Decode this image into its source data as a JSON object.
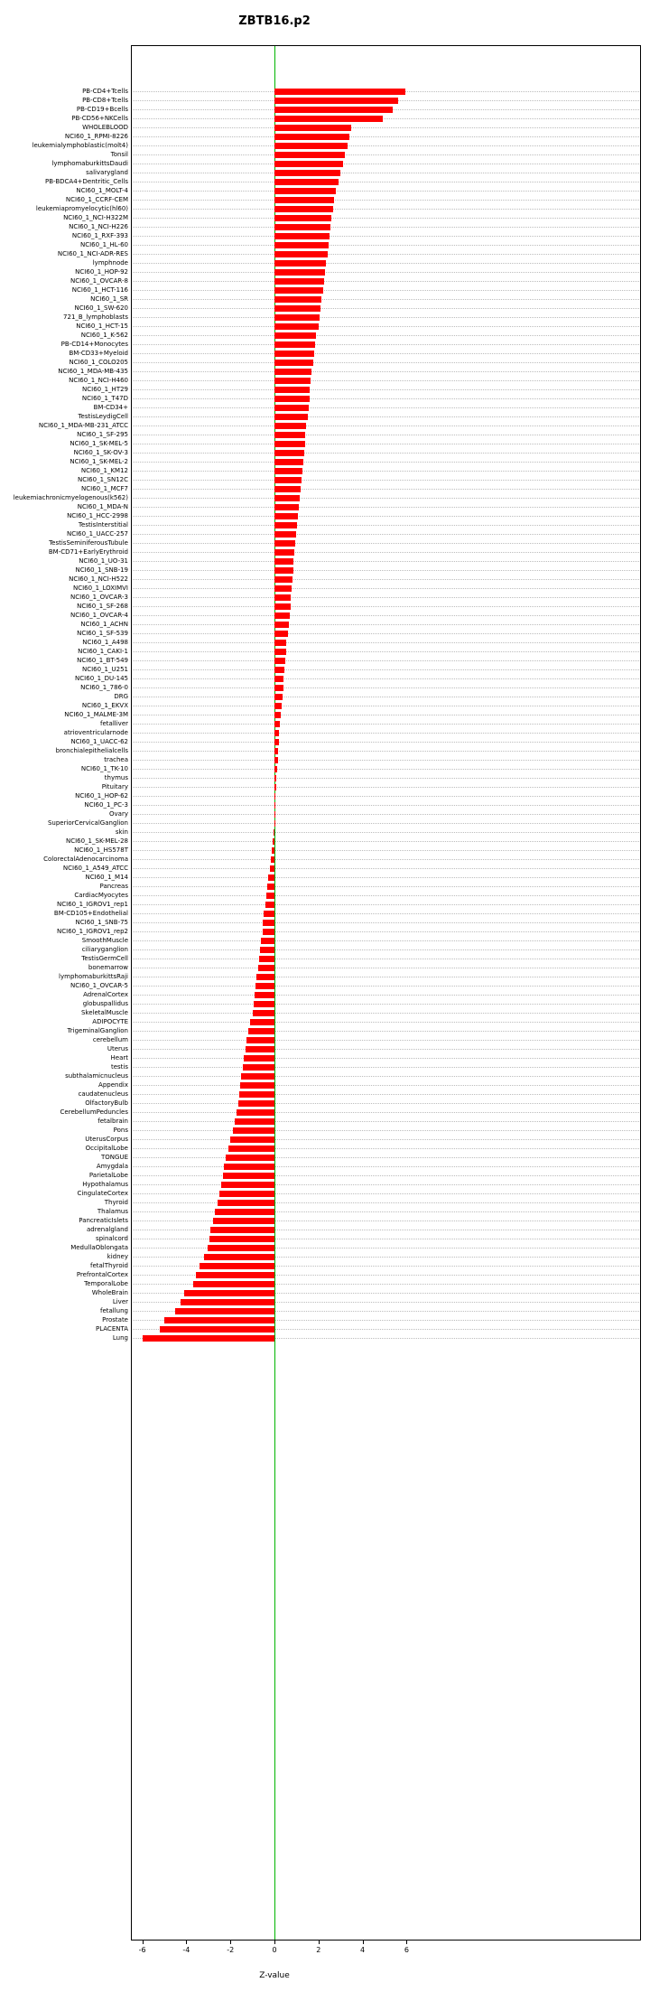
{
  "chart_data": {
    "type": "bar",
    "orientation": "horizontal",
    "title": "ZBTB16.p2",
    "xlabel": "Z-value",
    "xlim": [
      -6.5,
      6.5
    ],
    "x_ticks": [
      -6,
      -4,
      -2,
      0,
      2,
      4,
      6
    ],
    "grid": "dotted-horizontal-per-category",
    "legend": "none",
    "bar_color": "#ff0000",
    "zero_line_color": "#00b400",
    "categories": [
      "PB-CD4+Tcells",
      "PB-CD8+Tcells",
      "PB-CD19+Bcells",
      "PB-CD56+NKCells",
      "WHOLEBLOOD",
      "NCI60_1_RPMI-8226",
      "leukemialymphoblastic(molt4)",
      "Tonsil",
      "lymphomaburkittsDaudi",
      "salivarygland",
      "PB-BDCA4+Dentritic_Cells",
      "NCI60_1_MOLT-4",
      "NCI60_1_CCRF-CEM",
      "leukemiapromyelocytic(hl60)",
      "NCI60_1_NCI-H322M",
      "NCI60_1_NCI-H226",
      "NCI60_1_RXF-393",
      "NCI60_1_HL-60",
      "NCI60_1_NCI-ADR-RES",
      "lymphnode",
      "NCI60_1_HOP-92",
      "NCI60_1_OVCAR-8",
      "NCI60_1_HCT-116",
      "NCI60_1_SR",
      "NCI60_1_SW-620",
      "721_B_lymphoblasts",
      "NCI60_1_HCT-15",
      "NCI60_1_K-562",
      "PB-CD14+Monocytes",
      "BM-CD33+Myeloid",
      "NCI60_1_COLO205",
      "NCI60_1_MDA-MB-435",
      "NCI60_1_NCI-H460",
      "NCI60_1_HT29",
      "NCI60_1_T47D",
      "BM-CD34+",
      "TestisLeydigCell",
      "NCI60_1_MDA-MB-231_ATCC",
      "NCI60_1_SF-295",
      "NCI60_1_SK-MEL-5",
      "NCI60_1_SK-OV-3",
      "NCI60_1_SK-MEL-2",
      "NCI60_1_KM12",
      "NCI60_1_SN12C",
      "NCI60_1_MCF7",
      "leukemiachronicmyelogenous(k562)",
      "NCI60_1_MDA-N",
      "NCI60_1_HCC-2998",
      "TestisInterstitial",
      "NCI60_1_UACC-257",
      "TestisSeminiferousTubule",
      "BM-CD71+EarlyErythroid",
      "NCI60_1_UO-31",
      "NCI60_1_SNB-19",
      "NCI60_1_NCI-H522",
      "NCI60_1_LOXIMVI",
      "NCI60_1_OVCAR-3",
      "NCI60_1_SF-268",
      "NCI60_1_OVCAR-4",
      "NCI60_1_ACHN",
      "NCI60_1_SF-539",
      "NCI60_1_A498",
      "NCI60_1_CAKI-1",
      "NCI60_1_BT-549",
      "NCI60_1_U251",
      "NCI60_1_DU-145",
      "NCI60_1_786-0",
      "DRG",
      "NCI60_1_EKVX",
      "NCI60_1_MALME-3M",
      "fetalliver",
      "atrioventricularnode",
      "NCI60_1_UACC-62",
      "bronchialepithelialcells",
      "trachea",
      "NCI60_1_TK-10",
      "thymus",
      "Pituitary",
      "NCI60_1_HOP-62",
      "NCI60_1_PC-3",
      "Ovary",
      "SuperiorCervicalGanglion",
      "skin",
      "NCI60_1_SK-MEL-28",
      "NCI60_1_HS578T",
      "ColorectalAdenocarcinoma",
      "NCI60_1_A549_ATCC",
      "NCI60_1_M14",
      "Pancreas",
      "CardiacMyocytes",
      "NCI60_1_IGROV1_rep1",
      "BM-CD105+Endothelial",
      "NCI60_1_SNB-75",
      "NCI60_1_IGROV1_rep2",
      "SmoothMuscle",
      "ciliaryganglion",
      "TestisGermCell",
      "bonemarrow",
      "lymphomaburkittsRaji",
      "NCI60_1_OVCAR-5",
      "AdrenalCortex",
      "globuspallidus",
      "SkeletalMuscle",
      "ADIPOCYTE",
      "TrigeminalGanglion",
      "cerebellum",
      "Uterus",
      "Heart",
      "testis",
      "subthalamicnucleus",
      "Appendix",
      "caudatenucleus",
      "OlfactoryBulb",
      "CerebellumPeduncles",
      "fetalbrain",
      "Pons",
      "UterusCorpus",
      "OccipitalLobe",
      "TONGUE",
      "Amygdala",
      "ParietalLobe",
      "Hypothalamus",
      "CingulateCortex",
      "Thyroid",
      "Thalamus",
      "PancreaticIslets",
      "adrenalgland",
      "spinalcord",
      "MedullaOblongata",
      "kidney",
      "fetalThyroid",
      "PrefrontalCortex",
      "TemporalLobe",
      "WholeBrain",
      "Liver",
      "fetallung",
      "Prostate",
      "PLACENTA",
      "Lung"
    ],
    "values": [
      5.95,
      5.6,
      5.35,
      4.9,
      3.5,
      3.4,
      3.3,
      3.2,
      3.1,
      3.0,
      2.9,
      2.8,
      2.7,
      2.65,
      2.6,
      2.55,
      2.5,
      2.45,
      2.4,
      2.35,
      2.3,
      2.25,
      2.2,
      2.15,
      2.1,
      2.05,
      2.0,
      1.9,
      1.85,
      1.8,
      1.75,
      1.7,
      1.65,
      1.6,
      1.58,
      1.55,
      1.5,
      1.45,
      1.4,
      1.38,
      1.35,
      1.3,
      1.25,
      1.22,
      1.2,
      1.15,
      1.1,
      1.05,
      1.02,
      1.0,
      0.95,
      0.92,
      0.88,
      0.85,
      0.82,
      0.78,
      0.75,
      0.72,
      0.68,
      0.65,
      0.6,
      0.55,
      0.52,
      0.5,
      0.45,
      0.42,
      0.4,
      0.35,
      0.32,
      0.3,
      0.25,
      0.22,
      0.2,
      0.18,
      0.15,
      0.12,
      0.1,
      0.08,
      0.05,
      0.03,
      0.02,
      -0.02,
      -0.05,
      -0.08,
      -0.12,
      -0.18,
      -0.22,
      -0.28,
      -0.32,
      -0.38,
      -0.42,
      -0.48,
      -0.52,
      -0.55,
      -0.6,
      -0.65,
      -0.7,
      -0.75,
      -0.8,
      -0.85,
      -0.9,
      -0.95,
      -1.0,
      -1.1,
      -1.2,
      -1.28,
      -1.32,
      -1.38,
      -1.42,
      -1.5,
      -1.55,
      -1.6,
      -1.65,
      -1.72,
      -1.8,
      -1.9,
      -2.0,
      -2.1,
      -2.2,
      -2.28,
      -2.32,
      -2.4,
      -2.5,
      -2.6,
      -2.7,
      -2.8,
      -2.9,
      -2.95,
      -3.05,
      -3.2,
      -3.4,
      -3.55,
      -3.7,
      -4.1,
      -4.25,
      -4.5,
      -5.0,
      -5.2,
      -6.0
    ]
  }
}
